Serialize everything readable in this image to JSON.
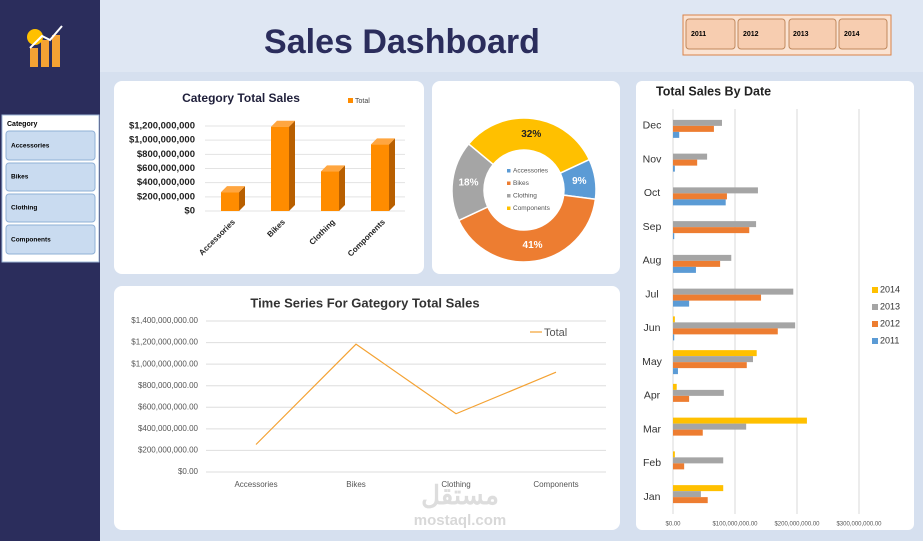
{
  "header": {
    "title": "Sales Dashboard",
    "years": [
      "2011",
      "2012",
      "2013",
      "2014"
    ]
  },
  "slicer": {
    "title": "Category",
    "items": [
      "Accessories",
      "Bikes",
      "Clothing",
      "Components"
    ]
  },
  "watermark": {
    "arabic": "مستقل",
    "latin": "mostaql.com"
  },
  "chart_data": [
    {
      "type": "bar",
      "title": "Category Total Sales",
      "categories": [
        "Accessories",
        "Bikes",
        "Clothing",
        "Components"
      ],
      "series": [
        {
          "name": "Total",
          "color": "#ff8c00",
          "values": [
            266000000,
            1190000000,
            560000000,
            940000000
          ]
        }
      ],
      "ylim": [
        0,
        1200000000
      ],
      "yticks": [
        {
          "value": 0,
          "label": "$0"
        },
        {
          "value": 200000000,
          "label": "$200,000,000"
        },
        {
          "value": 400000000,
          "label": "$400,000,000"
        },
        {
          "value": 600000000,
          "label": "$600,000,000"
        },
        {
          "value": 800000000,
          "label": "$800,000,000"
        },
        {
          "value": 1000000000,
          "label": "$1,000,000,000"
        },
        {
          "value": 1200000000,
          "label": "$1,200,000,000"
        }
      ],
      "grid": true
    },
    {
      "type": "doughnut",
      "categories": [
        "Accessories",
        "Bikes",
        "Clothing",
        "Components"
      ],
      "values": [
        9,
        41,
        18,
        32
      ],
      "value_labels": [
        "9%",
        "41%",
        "18%",
        "32%"
      ],
      "colors": [
        "#5b9bd5",
        "#ed7d31",
        "#a5a5a5",
        "#ffc000"
      ]
    },
    {
      "type": "line",
      "title": "Time Series For Gategory Total Sales",
      "categories": [
        "Accessories",
        "Bikes",
        "Clothing",
        "Components"
      ],
      "series": [
        {
          "name": "Total",
          "color": "#f4a233",
          "values": [
            255000000,
            1185000000,
            540000000,
            925000000
          ]
        }
      ],
      "ylim": [
        0,
        1400000000
      ],
      "yticks": [
        {
          "value": 0,
          "label": "$0.00"
        },
        {
          "value": 200000000,
          "label": "$200,000,000.00"
        },
        {
          "value": 400000000,
          "label": "$400,000,000.00"
        },
        {
          "value": 600000000,
          "label": "$600,000,000.00"
        },
        {
          "value": 800000000,
          "label": "$800,000,000.00"
        },
        {
          "value": 1000000000,
          "label": "$1,000,000,000.00"
        },
        {
          "value": 1200000000,
          "label": "$1,200,000,000.00"
        },
        {
          "value": 1400000000,
          "label": "$1,400,000,000.00"
        }
      ],
      "grid": true
    },
    {
      "type": "barh",
      "title": "Total Sales By Date",
      "categories": [
        "Jan",
        "Feb",
        "Mar",
        "Apr",
        "May",
        "Jun",
        "Jul",
        "Aug",
        "Sep",
        "Oct",
        "Nov",
        "Dec"
      ],
      "series": [
        {
          "name": "2014",
          "color": "#ffc000",
          "values": [
            81000000,
            3000000,
            216000000,
            6000000,
            135000000,
            3000000,
            0,
            0,
            0,
            0,
            0,
            0
          ]
        },
        {
          "name": "2013",
          "color": "#a5a5a5",
          "values": [
            45000000,
            81000000,
            118000000,
            82000000,
            129000000,
            197000000,
            194000000,
            94000000,
            134000000,
            137000000,
            55000000,
            79000000
          ]
        },
        {
          "name": "2012",
          "color": "#ed7d31",
          "values": [
            56000000,
            18000000,
            48000000,
            26000000,
            119000000,
            169000000,
            142000000,
            76000000,
            123000000,
            87000000,
            39000000,
            66000000
          ]
        },
        {
          "name": "2011",
          "color": "#5b9bd5",
          "values": [
            0,
            0,
            0,
            0,
            8000000,
            2000000,
            26000000,
            37000000,
            2000000,
            85000000,
            3000000,
            10000000
          ]
        }
      ],
      "xlim": [
        0,
        300000000
      ],
      "xticks": [
        {
          "value": 0,
          "label": "$0.00"
        },
        {
          "value": 100000000,
          "label": "$100,000,000.00"
        },
        {
          "value": 200000000,
          "label": "$200,000,000.00"
        },
        {
          "value": 300000000,
          "label": "$300,000,000.00"
        }
      ],
      "grid": true
    }
  ]
}
